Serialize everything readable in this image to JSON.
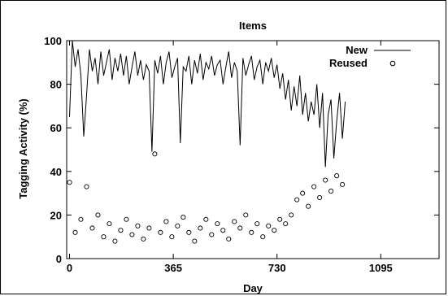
{
  "chart_data": {
    "type": "line",
    "title": "Items",
    "xlabel": "Day",
    "ylabel": "Tagging Activity (%)",
    "xlim": [
      -10,
      1300
    ],
    "ylim": [
      0,
      100
    ],
    "xticks": [
      0,
      365,
      730,
      1095
    ],
    "yticks": [
      0,
      20,
      40,
      60,
      80,
      100
    ],
    "legend_position": "top-right",
    "series": [
      {
        "name": "New",
        "style": "line",
        "color": "#000000",
        "x": [
          0,
          10,
          20,
          30,
          40,
          50,
          60,
          70,
          80,
          90,
          100,
          110,
          120,
          130,
          140,
          150,
          160,
          170,
          180,
          190,
          200,
          210,
          220,
          230,
          240,
          250,
          260,
          270,
          280,
          290,
          300,
          310,
          320,
          330,
          340,
          350,
          360,
          370,
          380,
          390,
          400,
          410,
          420,
          430,
          440,
          450,
          460,
          470,
          480,
          490,
          500,
          510,
          520,
          530,
          540,
          550,
          560,
          570,
          580,
          590,
          600,
          610,
          620,
          630,
          640,
          650,
          660,
          670,
          680,
          690,
          700,
          710,
          720,
          730,
          740,
          750,
          760,
          770,
          780,
          790,
          800,
          810,
          820,
          830,
          840,
          850,
          860,
          870,
          880,
          890,
          900,
          910,
          920,
          930,
          940,
          950,
          960,
          970
        ],
        "y": [
          65,
          100,
          88,
          96,
          84,
          56,
          75,
          96,
          86,
          92,
          80,
          95,
          84,
          90,
          96,
          82,
          92,
          86,
          94,
          84,
          93,
          80,
          88,
          95,
          84,
          91,
          82,
          89,
          86,
          49,
          91,
          85,
          93,
          80,
          90,
          95,
          83,
          88,
          92,
          53,
          88,
          86,
          93,
          80,
          91,
          85,
          94,
          82,
          90,
          87,
          93,
          84,
          89,
          91,
          80,
          88,
          95,
          83,
          90,
          86,
          52,
          92,
          84,
          89,
          93,
          82,
          88,
          91,
          80,
          90,
          86,
          92,
          83,
          89,
          78,
          85,
          73,
          82,
          68,
          79,
          70,
          84,
          66,
          76,
          63,
          72,
          66,
          80,
          60,
          76,
          42,
          66,
          73,
          46,
          63,
          76,
          55,
          72
        ]
      },
      {
        "name": "Reused",
        "style": "points",
        "color": "#000000",
        "x": [
          0,
          20,
          40,
          60,
          80,
          100,
          120,
          140,
          160,
          180,
          200,
          220,
          240,
          260,
          280,
          300,
          320,
          340,
          360,
          380,
          400,
          420,
          440,
          460,
          480,
          500,
          520,
          540,
          560,
          580,
          600,
          620,
          640,
          660,
          680,
          700,
          720,
          740,
          760,
          780,
          800,
          820,
          840,
          860,
          880,
          900,
          920,
          940,
          960
        ],
        "y": [
          35,
          12,
          18,
          33,
          14,
          20,
          10,
          16,
          8,
          13,
          18,
          11,
          15,
          9,
          14,
          48,
          12,
          17,
          10,
          15,
          19,
          12,
          8,
          14,
          18,
          11,
          16,
          13,
          9,
          17,
          14,
          20,
          12,
          16,
          10,
          15,
          13,
          18,
          16,
          20,
          27,
          30,
          24,
          33,
          28,
          36,
          31,
          38,
          34
        ]
      }
    ]
  }
}
